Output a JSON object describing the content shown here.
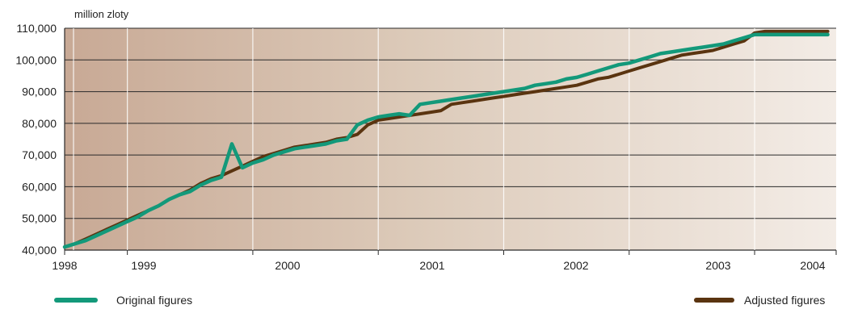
{
  "chart_data": {
    "type": "line",
    "unit_label": "million zloty",
    "ylim": [
      40000,
      110000
    ],
    "y_ticks": [
      "40,000",
      "50,000",
      "60,000",
      "70,000",
      "80,000",
      "90,000",
      "100,000",
      "110,000"
    ],
    "y_tick_values": [
      40000,
      50000,
      60000,
      70000,
      80000,
      90000,
      100000,
      110000
    ],
    "x_tick_labels": [
      "1998",
      "1999",
      "2000",
      "2001",
      "2002",
      "2003",
      "2004"
    ],
    "x_tick_values": [
      1998.0,
      1998.5,
      1999.5,
      2000.5,
      2001.5,
      2002.5,
      2003.5
    ],
    "x_range": [
      1998.0,
      2004.15
    ],
    "grid": true,
    "legend_position": "bottom",
    "colors": {
      "original": "#13997a",
      "adjusted": "#5a3410",
      "bg_left": "#c9ab97",
      "bg_right": "#f2ebe5"
    },
    "x": [
      1998.0,
      1998.083,
      1998.167,
      1998.25,
      1998.333,
      1998.417,
      1998.5,
      1998.583,
      1998.667,
      1998.75,
      1998.833,
      1998.917,
      1999.0,
      1999.083,
      1999.167,
      1999.25,
      1999.333,
      1999.417,
      1999.5,
      1999.583,
      1999.667,
      1999.75,
      1999.833,
      1999.917,
      2000.0,
      2000.083,
      2000.167,
      2000.25,
      2000.333,
      2000.417,
      2000.5,
      2000.583,
      2000.667,
      2000.75,
      2000.833,
      2000.917,
      2001.0,
      2001.083,
      2001.167,
      2001.25,
      2001.333,
      2001.417,
      2001.5,
      2001.583,
      2001.667,
      2001.75,
      2001.833,
      2001.917,
      2002.0,
      2002.083,
      2002.167,
      2002.25,
      2002.333,
      2002.417,
      2002.5,
      2002.583,
      2002.667,
      2002.75,
      2002.833,
      2002.917,
      2003.0,
      2003.083,
      2003.167,
      2003.25,
      2003.333,
      2003.417,
      2003.5,
      2003.583,
      2003.667,
      2003.75,
      2003.833,
      2003.917,
      2004.0,
      2004.083
    ],
    "series": [
      {
        "name": "Adjusted figures",
        "values": [
          41000,
          42000,
          43500,
          45000,
          46500,
          48000,
          49500,
          51000,
          52500,
          54000,
          56000,
          57500,
          59000,
          61000,
          62500,
          63500,
          65000,
          66500,
          68000,
          69500,
          70500,
          71500,
          72500,
          73000,
          73500,
          74000,
          75000,
          75500,
          76500,
          79500,
          81000,
          81500,
          82000,
          82500,
          83000,
          83500,
          84000,
          86000,
          86500,
          87000,
          87500,
          88000,
          88500,
          89000,
          89500,
          90000,
          90500,
          91000,
          91500,
          92000,
          93000,
          94000,
          94500,
          95500,
          96500,
          97500,
          98500,
          99500,
          100500,
          101500,
          102000,
          102500,
          103000,
          104000,
          105000,
          106000,
          108500,
          109000,
          109000,
          109000,
          109000,
          109000,
          109000,
          109000
        ]
      },
      {
        "name": "Original figures",
        "values": [
          41000,
          42000,
          43000,
          44500,
          46000,
          47500,
          49000,
          50500,
          52500,
          54000,
          56000,
          57500,
          58500,
          60500,
          62000,
          63000,
          73500,
          66000,
          67500,
          68500,
          70000,
          71000,
          72000,
          72500,
          73000,
          73500,
          74500,
          75000,
          79500,
          81000,
          82000,
          82500,
          83000,
          82500,
          86000,
          86500,
          87000,
          87500,
          88000,
          88500,
          89000,
          89500,
          90000,
          90500,
          91000,
          92000,
          92500,
          93000,
          94000,
          94500,
          95500,
          96500,
          97500,
          98500,
          99000,
          100000,
          101000,
          102000,
          102500,
          103000,
          103500,
          104000,
          104500,
          105000,
          106000,
          107000,
          108000,
          108000,
          108000,
          108000,
          108000,
          108000,
          108000,
          108000
        ]
      }
    ]
  },
  "legend": {
    "original_label": "Original figures",
    "adjusted_label": "Adjusted figures"
  }
}
